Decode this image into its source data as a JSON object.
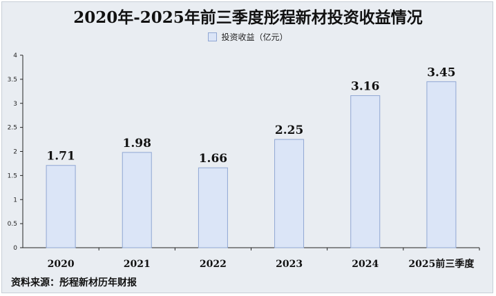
{
  "chart_data": {
    "type": "bar",
    "title": "2020年-2025年前三季度彤程新材投资收益情况",
    "legend": [
      "投资收益（亿元）"
    ],
    "categories": [
      "2020",
      "2021",
      "2022",
      "2023",
      "2024",
      "2025前三季度"
    ],
    "values": [
      1.71,
      1.98,
      1.66,
      2.25,
      3.16,
      3.45
    ],
    "value_labels": [
      "1.71",
      "1.98",
      "1.66",
      "2.25",
      "3.16",
      "3.45"
    ],
    "ylim": [
      0,
      4
    ],
    "yticks": [
      "0",
      "0.5",
      "1",
      "1.5",
      "2",
      "2.5",
      "3",
      "3.5",
      "4"
    ],
    "grid": false,
    "legend_position": "top-center",
    "colors": {
      "bar_fill": "#dbe5f7",
      "bar_stroke": "#8fa6d3"
    }
  },
  "source_text": "资料来源：彤程新材历年财报"
}
